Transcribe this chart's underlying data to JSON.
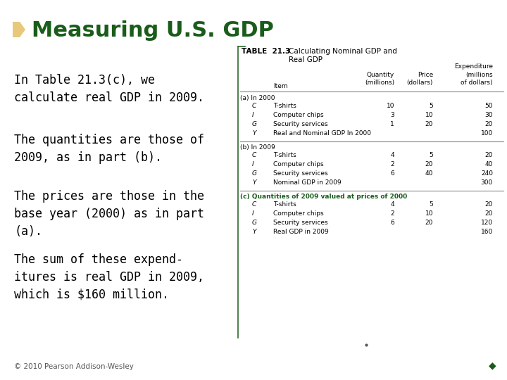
{
  "title": "Measuring U.S. GDP",
  "title_color": "#1a5c1a",
  "bg_color": "#ffffff",
  "bullet_color": "#e8c87a",
  "left_texts": [
    "In Table 21.3(c), we\ncalculate real GDP in 2009.",
    "The quantities are those of\n2009, as in part (b).",
    "The prices are those in the\nbase year (2000) as in part\n(a).",
    "The sum of these expend-\nitures is real GDP in 2009,\nwhich is $160 million."
  ],
  "footer": "© 2010 Pearson Addison-Wesley",
  "table_title_bold": "TABLE  21.3",
  "table_title_rest": "Calculating Nominal GDP and\nReal GDP",
  "section_a_label": "(a) In 2000",
  "section_a_rows": [
    [
      "C",
      "T-shirts",
      "10",
      "5",
      "50"
    ],
    [
      "I",
      "Computer chips",
      "3",
      "10",
      "30"
    ],
    [
      "G",
      "Security services",
      "1",
      "20",
      "20"
    ],
    [
      "Y",
      "Real and Nominal GDP In 2000",
      "",
      "",
      "100"
    ]
  ],
  "section_b_label": "(b) In 2009",
  "section_b_rows": [
    [
      "C",
      "T-shirts",
      "4",
      "5",
      "20"
    ],
    [
      "I",
      "Computer chips",
      "2",
      "20",
      "40"
    ],
    [
      "G",
      "Security services",
      "6",
      "40",
      "240"
    ],
    [
      "Y",
      "Nominal GDP in 2009",
      "",
      "",
      "300"
    ]
  ],
  "section_c_label": "(c) Quantities of 2009 valued at prices of 2000",
  "section_c_rows": [
    [
      "C",
      "T-shirts",
      "4",
      "5",
      "20"
    ],
    [
      "I",
      "Computer chips",
      "2",
      "10",
      "20"
    ],
    [
      "G",
      "Security services",
      "6",
      "20",
      "120"
    ],
    [
      "Y",
      "Real GDP in 2009",
      "",
      "",
      "160"
    ]
  ],
  "table_border_color": "#2e6b2e",
  "section_c_label_color": "#1a5c1a"
}
